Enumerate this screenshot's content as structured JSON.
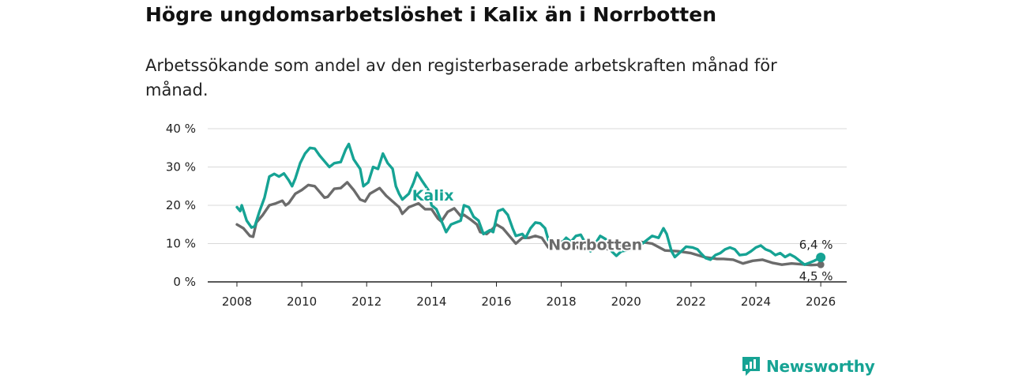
{
  "header": {
    "title": "Högre ungdomsarbetslöshet i Kalix än i Norrbotten",
    "subtitle": "Arbetssökande som andel av den registerbaserade arbetskraften månad för månad."
  },
  "brand": {
    "name": "Newsworthy",
    "color": "#16a394"
  },
  "chart_data": {
    "type": "line",
    "title": "Högre ungdomsarbetslöshet i Kalix än i Norrbotten",
    "subtitle": "Arbetssökande som andel av den registerbaserade arbetskraften månad för månad.",
    "xlabel": "",
    "ylabel": "",
    "xlim": [
      2007.1,
      2026.8
    ],
    "ylim": [
      0,
      40
    ],
    "grid": true,
    "x_ticks": [
      2008,
      2010,
      2012,
      2014,
      2016,
      2018,
      2020,
      2022,
      2024,
      2026
    ],
    "y_ticks": [
      0,
      10,
      20,
      30,
      40
    ],
    "y_tick_labels": [
      "0 %",
      "10 %",
      "20 %",
      "30 %",
      "40 %"
    ],
    "series": [
      {
        "name": "Norrbotten",
        "color": "#6b6b6b",
        "points": [
          [
            2008.0,
            15
          ],
          [
            2008.2,
            14
          ],
          [
            2008.4,
            12
          ],
          [
            2008.5,
            11.8
          ],
          [
            2008.6,
            15.5
          ],
          [
            2008.8,
            17.5
          ],
          [
            2009.0,
            20
          ],
          [
            2009.2,
            20.5
          ],
          [
            2009.4,
            21.2
          ],
          [
            2009.5,
            20
          ],
          [
            2009.6,
            20.6
          ],
          [
            2009.8,
            23
          ],
          [
            2010.0,
            24
          ],
          [
            2010.2,
            25.3
          ],
          [
            2010.4,
            25
          ],
          [
            2010.6,
            23
          ],
          [
            2010.7,
            22
          ],
          [
            2010.8,
            22.2
          ],
          [
            2011.0,
            24.3
          ],
          [
            2011.2,
            24.5
          ],
          [
            2011.4,
            26
          ],
          [
            2011.6,
            24
          ],
          [
            2011.8,
            21.5
          ],
          [
            2011.95,
            21
          ],
          [
            2012.1,
            23
          ],
          [
            2012.4,
            24.5
          ],
          [
            2012.6,
            22.5
          ],
          [
            2012.8,
            21
          ],
          [
            2013.0,
            19.5
          ],
          [
            2013.1,
            17.8
          ],
          [
            2013.3,
            19.5
          ],
          [
            2013.6,
            20.5
          ],
          [
            2013.8,
            19
          ],
          [
            2014.0,
            19
          ],
          [
            2014.2,
            16.5
          ],
          [
            2014.3,
            15.8
          ],
          [
            2014.5,
            18.3
          ],
          [
            2014.7,
            19.2
          ],
          [
            2014.9,
            17.2
          ],
          [
            2015.0,
            17.5
          ],
          [
            2015.2,
            16.3
          ],
          [
            2015.4,
            15
          ],
          [
            2015.5,
            13
          ],
          [
            2015.7,
            12.5
          ],
          [
            2015.9,
            14
          ],
          [
            2016.0,
            15
          ],
          [
            2016.2,
            14
          ],
          [
            2016.4,
            12
          ],
          [
            2016.6,
            10
          ],
          [
            2016.8,
            11.5
          ],
          [
            2017.0,
            11.5
          ],
          [
            2017.2,
            12
          ],
          [
            2017.4,
            11.5
          ],
          [
            2017.6,
            9
          ],
          [
            2017.8,
            9.2
          ],
          [
            2018.0,
            10.5
          ],
          [
            2018.2,
            10
          ],
          [
            2018.4,
            9.5
          ],
          [
            2018.6,
            8.5
          ],
          [
            2019.0,
            9
          ],
          [
            2019.5,
            8.5
          ],
          [
            2020.0,
            9.5
          ],
          [
            2020.4,
            10.5
          ],
          [
            2020.8,
            10
          ],
          [
            2021.2,
            8.2
          ],
          [
            2021.6,
            8
          ],
          [
            2022.0,
            7.5
          ],
          [
            2022.4,
            6.5
          ],
          [
            2022.8,
            6
          ],
          [
            2023.0,
            6
          ],
          [
            2023.3,
            5.8
          ],
          [
            2023.6,
            4.8
          ],
          [
            2023.9,
            5.5
          ],
          [
            2024.2,
            5.8
          ],
          [
            2024.5,
            5
          ],
          [
            2024.8,
            4.5
          ],
          [
            2025.1,
            4.8
          ],
          [
            2025.4,
            4.6
          ],
          [
            2025.7,
            4.4
          ],
          [
            2026.0,
            4.5
          ]
        ]
      },
      {
        "name": "Kalix",
        "color": "#16a394",
        "points": [
          [
            2008.0,
            19.5
          ],
          [
            2008.1,
            18.5
          ],
          [
            2008.15,
            20
          ],
          [
            2008.3,
            16
          ],
          [
            2008.45,
            14.2
          ],
          [
            2008.55,
            14.5
          ],
          [
            2008.7,
            18.5
          ],
          [
            2008.85,
            22
          ],
          [
            2009.0,
            27.5
          ],
          [
            2009.15,
            28.2
          ],
          [
            2009.3,
            27.5
          ],
          [
            2009.45,
            28.3
          ],
          [
            2009.6,
            26.5
          ],
          [
            2009.7,
            25
          ],
          [
            2009.8,
            27
          ],
          [
            2009.95,
            31
          ],
          [
            2010.1,
            33.5
          ],
          [
            2010.25,
            35
          ],
          [
            2010.4,
            34.8
          ],
          [
            2010.55,
            33
          ],
          [
            2010.7,
            31.5
          ],
          [
            2010.85,
            30
          ],
          [
            2011.0,
            31
          ],
          [
            2011.2,
            31.3
          ],
          [
            2011.35,
            34.5
          ],
          [
            2011.45,
            36
          ],
          [
            2011.6,
            32
          ],
          [
            2011.8,
            29.5
          ],
          [
            2011.9,
            25
          ],
          [
            2012.05,
            26
          ],
          [
            2012.2,
            30
          ],
          [
            2012.35,
            29.5
          ],
          [
            2012.5,
            33.5
          ],
          [
            2012.65,
            31
          ],
          [
            2012.8,
            29.5
          ],
          [
            2012.9,
            25
          ],
          [
            2013.0,
            23
          ],
          [
            2013.1,
            21.5
          ],
          [
            2013.3,
            23
          ],
          [
            2013.45,
            26
          ],
          [
            2013.55,
            28.5
          ],
          [
            2013.7,
            26.5
          ],
          [
            2013.9,
            24
          ],
          [
            2014.0,
            20
          ],
          [
            2014.15,
            19
          ],
          [
            2014.3,
            16
          ],
          [
            2014.45,
            13
          ],
          [
            2014.6,
            15
          ],
          [
            2014.75,
            15.5
          ],
          [
            2014.9,
            16
          ],
          [
            2015.0,
            20
          ],
          [
            2015.15,
            19.5
          ],
          [
            2015.3,
            17
          ],
          [
            2015.45,
            16
          ],
          [
            2015.6,
            12.5
          ],
          [
            2015.8,
            13.5
          ],
          [
            2015.9,
            13
          ],
          [
            2016.05,
            18.5
          ],
          [
            2016.2,
            19
          ],
          [
            2016.35,
            17.5
          ],
          [
            2016.5,
            14
          ],
          [
            2016.6,
            12
          ],
          [
            2016.8,
            12.5
          ],
          [
            2016.9,
            11.5
          ],
          [
            2017.05,
            14
          ],
          [
            2017.2,
            15.5
          ],
          [
            2017.35,
            15.3
          ],
          [
            2017.5,
            14
          ],
          [
            2017.6,
            11
          ],
          [
            2017.75,
            9.5
          ],
          [
            2017.85,
            8.5
          ],
          [
            2018.0,
            10
          ],
          [
            2018.15,
            11.5
          ],
          [
            2018.3,
            10.5
          ],
          [
            2018.45,
            12
          ],
          [
            2018.6,
            12.3
          ],
          [
            2018.75,
            10
          ],
          [
            2018.9,
            8
          ],
          [
            2019.2,
            12
          ],
          [
            2019.4,
            11
          ],
          [
            2019.55,
            8
          ],
          [
            2019.7,
            6.8
          ],
          [
            2019.85,
            8
          ],
          [
            2020.2,
            8.5
          ],
          [
            2020.5,
            10
          ],
          [
            2020.8,
            12
          ],
          [
            2021.0,
            11.5
          ],
          [
            2021.15,
            14
          ],
          [
            2021.25,
            12.5
          ],
          [
            2021.4,
            8
          ],
          [
            2021.5,
            6.5
          ],
          [
            2021.7,
            8
          ],
          [
            2021.85,
            9.2
          ],
          [
            2022.05,
            9
          ],
          [
            2022.2,
            8.5
          ],
          [
            2022.3,
            7.5
          ],
          [
            2022.45,
            6.2
          ],
          [
            2022.6,
            5.8
          ],
          [
            2022.75,
            7
          ],
          [
            2022.9,
            7.5
          ],
          [
            2023.05,
            8.5
          ],
          [
            2023.2,
            9
          ],
          [
            2023.35,
            8.5
          ],
          [
            2023.5,
            7
          ],
          [
            2023.7,
            7.2
          ],
          [
            2023.85,
            8
          ],
          [
            2024.0,
            9
          ],
          [
            2024.15,
            9.5
          ],
          [
            2024.3,
            8.5
          ],
          [
            2024.45,
            8
          ],
          [
            2024.6,
            7
          ],
          [
            2024.75,
            7.5
          ],
          [
            2024.9,
            6.5
          ],
          [
            2025.05,
            7.2
          ],
          [
            2025.2,
            6.5
          ],
          [
            2025.35,
            5.5
          ],
          [
            2025.5,
            4.5
          ],
          [
            2025.65,
            5
          ],
          [
            2025.8,
            5.5
          ],
          [
            2026.0,
            6.4
          ]
        ]
      }
    ],
    "annotations": [
      {
        "series": "Kalix",
        "text": "Kalix",
        "x": 2013.4,
        "y": 22.5
      },
      {
        "series": "Norrbotten",
        "text": "Norrbotten",
        "x": 2017.6,
        "y": 9.6
      },
      {
        "series": "Kalix",
        "text": "6,4 %",
        "x": 2026.0,
        "y": 6.4,
        "kind": "end"
      },
      {
        "series": "Norrbotten",
        "text": "4,5 %",
        "x": 2026.0,
        "y": 4.5,
        "kind": "end"
      }
    ]
  }
}
